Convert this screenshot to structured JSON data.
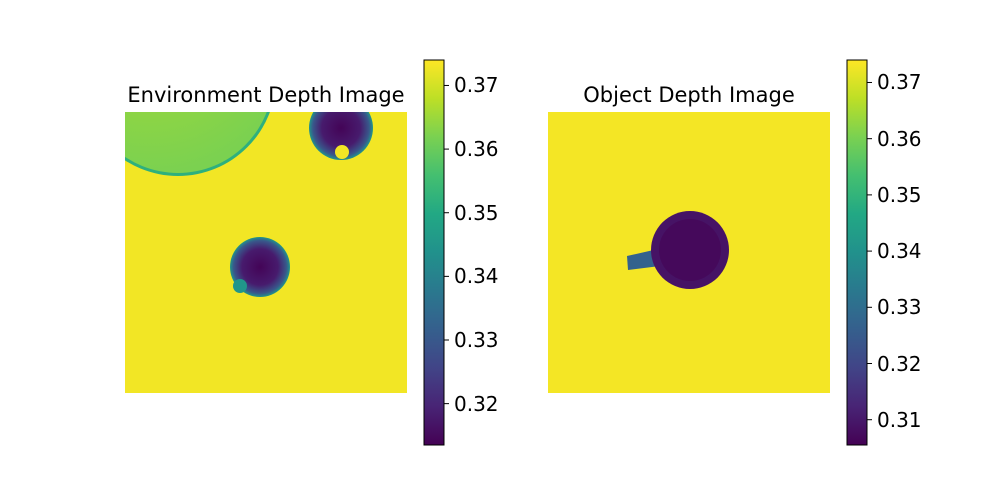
{
  "chart_data": [
    {
      "type": "heatmap",
      "title": "Environment Depth Image",
      "colormap": "viridis",
      "axes": "off",
      "background_value": 0.373,
      "features": [
        {
          "label": "large disc (top-left, partly outside image)",
          "value": 0.364,
          "edge_value": 0.352
        },
        {
          "label": "small blob (top-right)",
          "value": 0.314,
          "edge_value": 0.345
        },
        {
          "label": "small blob (center)",
          "value": 0.314,
          "edge_value": 0.345
        }
      ],
      "colorbar": {
        "vmin": 0.3135,
        "vmax": 0.374,
        "ticks": [
          0.32,
          0.33,
          0.34,
          0.35,
          0.36,
          0.37
        ],
        "tick_labels": [
          "0.32",
          "0.33",
          "0.34",
          "0.35",
          "0.36",
          "0.37"
        ]
      }
    },
    {
      "type": "heatmap",
      "title": "Object Depth Image",
      "colormap": "viridis",
      "axes": "off",
      "background_value": 0.373,
      "features": [
        {
          "label": "cup body (circle)",
          "value": 0.307,
          "rim_value": 0.309
        },
        {
          "label": "handle",
          "value": 0.327
        }
      ],
      "colorbar": {
        "vmin": 0.3055,
        "vmax": 0.374,
        "ticks": [
          0.31,
          0.32,
          0.33,
          0.34,
          0.35,
          0.36,
          0.37
        ],
        "tick_labels": [
          "0.31",
          "0.32",
          "0.33",
          "0.34",
          "0.35",
          "0.36",
          "0.37"
        ]
      }
    }
  ]
}
